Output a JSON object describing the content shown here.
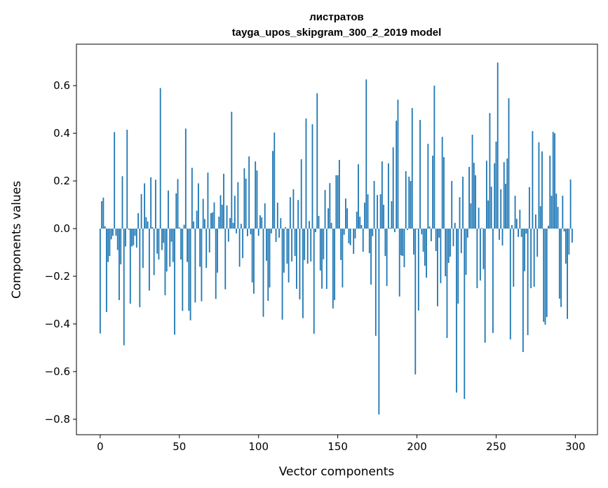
{
  "chart_data": {
    "type": "bar",
    "title": "листратов",
    "subtitle": "tayga_upos_skipgram_300_2_2019 model",
    "xlabel": "Vector components",
    "ylabel": "Components values",
    "xlim": [
      -15,
      314
    ],
    "ylim": [
      -0.865,
      0.774
    ],
    "xticks": [
      0,
      50,
      100,
      150,
      200,
      250,
      300
    ],
    "yticks": [
      -0.8,
      -0.6,
      -0.4,
      -0.2,
      0.0,
      0.2,
      0.4,
      0.6
    ],
    "grid": false,
    "bar_color": "#1f77b4",
    "x_start": 0,
    "values": [
      -0.44,
      0.115,
      0.13,
      0.01,
      -0.35,
      -0.14,
      -0.115,
      -0.045,
      -0.03,
      0.405,
      -0.03,
      -0.09,
      -0.3,
      -0.15,
      0.22,
      -0.49,
      -0.075,
      0.415,
      -0.005,
      -0.315,
      -0.075,
      -0.07,
      -0.03,
      -0.08,
      0.065,
      -0.33,
      0.145,
      -0.165,
      0.19,
      0.048,
      0.03,
      -0.26,
      0.215,
      0.006,
      -0.195,
      0.205,
      -0.105,
      -0.13,
      0.59,
      -0.09,
      -0.06,
      -0.28,
      -0.18,
      0.16,
      -0.16,
      -0.055,
      -0.14,
      -0.445,
      0.148,
      0.208,
      0.005,
      -0.13,
      -0.345,
      0.016,
      0.42,
      -0.14,
      -0.345,
      -0.385,
      0.255,
      0.03,
      -0.31,
      0.075,
      0.19,
      -0.16,
      -0.305,
      0.125,
      0.04,
      -0.165,
      0.235,
      -0.1,
      0.065,
      0.068,
      0.11,
      -0.295,
      -0.185,
      0.05,
      0.14,
      0.1,
      0.23,
      -0.255,
      0.097,
      -0.055,
      0.044,
      0.49,
      0.024,
      0.138,
      -0.02,
      0.195,
      -0.16,
      0.02,
      -0.124,
      0.253,
      0.21,
      -0.032,
      0.303,
      -0.024,
      -0.226,
      -0.273,
      0.282,
      0.244,
      -0.03,
      0.056,
      0.047,
      -0.37,
      0.106,
      -0.135,
      -0.303,
      -0.247,
      -0.02,
      0.326,
      0.403,
      -0.056,
      0.109,
      -0.038,
      0.044,
      -0.382,
      -0.185,
      0.006,
      -0.147,
      -0.226,
      0.132,
      -0.138,
      0.165,
      -0.115,
      -0.253,
      0.12,
      -0.297,
      0.291,
      -0.376,
      -0.132,
      0.462,
      -0.147,
      0.032,
      -0.138,
      0.438,
      -0.441,
      -0.015,
      0.568,
      0.053,
      -0.176,
      -0.252,
      -0.129,
      0.162,
      -0.253,
      0.085,
      0.191,
      0.024,
      -0.335,
      -0.3,
      0.224,
      0.224,
      0.288,
      -0.132,
      -0.247,
      -0.026,
      0.126,
      0.085,
      -0.062,
      -0.07,
      0,
      -0.106,
      -0.041,
      0.071,
      0.27,
      0.05,
      0.015,
      -0.097,
      0.109,
      0.626,
      0.144,
      -0.103,
      -0.235,
      -0.032,
      0.2,
      -0.45,
      0.141,
      -0.78,
      0.144,
      0.282,
      0.1,
      -0.115,
      -0.241,
      0.274,
      0.003,
      0.115,
      0.341,
      -0.015,
      0.453,
      0.541,
      -0.285,
      -0.112,
      -0.115,
      -0.162,
      0.241,
      -0.006,
      0.218,
      0.2,
      0.506,
      -0.109,
      -0.612,
      -0.003,
      -0.344,
      0.456,
      -0.024,
      -0.097,
      -0.156,
      -0.206,
      0.356,
      0.009,
      -0.053,
      0.306,
      0.6,
      -0.094,
      -0.326,
      -0.038,
      -0.229,
      0.385,
      0.3,
      -0.2,
      -0.459,
      -0.144,
      -0.118,
      0.2,
      -0.074,
      0.024,
      -0.688,
      -0.315,
      0.132,
      -0.103,
      0.218,
      -0.715,
      -0.194,
      -0.038,
      0.259,
      0.106,
      0.394,
      0.276,
      0.224,
      -0.25,
      0.088,
      -0.218,
      0.003,
      -0.17,
      -0.479,
      0.285,
      0.118,
      0.485,
      0.176,
      -0.438,
      0.274,
      0.365,
      0.697,
      -0.047,
      0.165,
      -0.071,
      0.279,
      0.188,
      0.294,
      0.547,
      -0.465,
      0.015,
      -0.244,
      0.138,
      0.041,
      -0.035,
      0.079,
      -0.035,
      -0.518,
      -0.179,
      -0.021,
      -0.447,
      0.174,
      -0.25,
      0.409,
      -0.244,
      0.059,
      -0.118,
      0.362,
      0.094,
      0.324,
      -0.391,
      -0.403,
      -0.371,
      0.012,
      0.306,
      0.138,
      0.406,
      0.4,
      0.147,
      0.091,
      -0.294,
      -0.329,
      0.138,
      -0.012,
      -0.147,
      -0.379,
      -0.109,
      0.206,
      -0.059
    ]
  }
}
